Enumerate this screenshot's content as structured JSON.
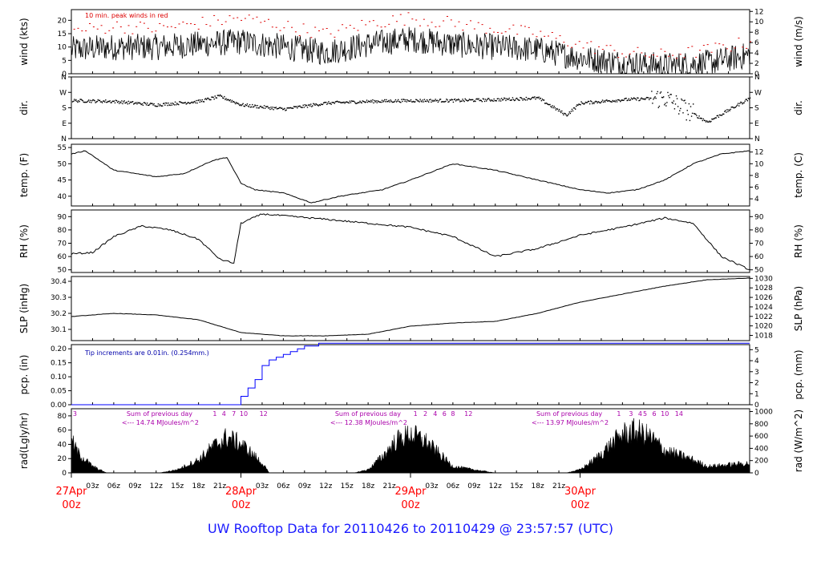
{
  "footer": {
    "title": "UW Rooftop Data for 20110426  to  20110429 @ 23:57:57  (UTC)"
  },
  "colors": {
    "axis": "#000000",
    "data": "#000000",
    "peak": "#dd0000",
    "precip": "#0000ff",
    "note": "#0000aa",
    "radnote": "#aa00aa",
    "date": "#ff0000"
  },
  "chart_data": {
    "type": "line",
    "time_axis": {
      "hour_ticks": [
        "03z",
        "06z",
        "09z",
        "12z",
        "15z",
        "18z",
        "21z"
      ],
      "day_labels": [
        {
          "date": "27Apr",
          "zulu": "00z"
        },
        {
          "date": "28Apr",
          "zulu": "00z"
        },
        {
          "date": "29Apr",
          "zulu": "00z"
        },
        {
          "date": "30Apr",
          "zulu": "00z"
        }
      ]
    },
    "panels": [
      {
        "key": "wind",
        "left_label": "wind (kts)",
        "right_label": "wind (m/s)",
        "left_ticks": [
          "0",
          "5",
          "10",
          "15",
          "20"
        ],
        "ylim": [
          0,
          24
        ],
        "right_ticks": [
          "0",
          "2",
          "4",
          "6",
          "8",
          "10",
          "12"
        ],
        "right_ylim": [
          0,
          12.35
        ],
        "annotation": "10 min. peak winds in red",
        "series": [
          {
            "name": "",
            "style": "line",
            "x_hours": [
              0,
              6,
              12,
              18,
              24,
              30,
              36,
              42,
              48,
              54,
              60,
              66,
              72,
              78,
              84,
              90,
              96
            ],
            "y": [
              9,
              10,
              10,
              11,
              12,
              10,
              8,
              11,
              13,
              11,
              10,
              9,
              6,
              4,
              3,
              4,
              7
            ]
          },
          {
            "name": "",
            "style": "dots",
            "x_hours": [
              0,
              6,
              12,
              18,
              24,
              30,
              36,
              42,
              48,
              54,
              60,
              66,
              72,
              78,
              84,
              90,
              96
            ],
            "y": [
              16,
              18,
              17,
              19,
              21,
              18,
              15,
              19,
              21,
              19,
              17,
              15,
              11,
              8,
              7,
              9,
              12
            ]
          }
        ]
      },
      {
        "key": "dir",
        "left_label": "dir.",
        "right_label": "dir.",
        "left_ticks": [
          "N",
          "E",
          "S",
          "W",
          "N"
        ],
        "ylim": [
          0,
          360
        ],
        "right_ticks": [
          "N",
          "E",
          "S",
          "W",
          "N"
        ],
        "right_ylim": [
          0,
          360
        ],
        "series": [
          {
            "name": "",
            "style": "dots",
            "x_hours": [
              0,
              6,
              12,
              18,
              21,
              24,
              30,
              36,
              42,
              48,
              54,
              60,
              66,
              70,
              72,
              78,
              84,
              90,
              96
            ],
            "y": [
              225,
              220,
              200,
              220,
              250,
              200,
              175,
              210,
              220,
              225,
              225,
              230,
              240,
              140,
              210,
              230,
              240,
              100,
              240
            ]
          }
        ]
      },
      {
        "key": "temp",
        "left_label": "temp. (F)",
        "right_label": "temp. (C)",
        "left_ticks": [
          "40",
          "45",
          "50",
          "55"
        ],
        "ylim": [
          37,
          56
        ],
        "right_ticks": [
          "4",
          "6",
          "8",
          "10",
          "12"
        ],
        "right_ylim": [
          2.78,
          13.33
        ],
        "series": [
          {
            "name": "",
            "style": "line",
            "x_hours": [
              0,
              2,
              6,
              12,
              16,
              20,
              22,
              24,
              26,
              30,
              34,
              38,
              44,
              48,
              54,
              60,
              66,
              70,
              72,
              76,
              80,
              84,
              88,
              92,
              96
            ],
            "y": [
              53,
              54,
              48,
              46,
              47,
              51,
              52,
              44,
              42,
              41,
              38,
              40,
              42,
              45,
              50,
              48,
              45,
              43,
              42,
              41,
              42,
              45,
              50,
              53,
              54
            ]
          }
        ]
      },
      {
        "key": "rh",
        "left_label": "RH (%)",
        "right_label": "RH (%)",
        "left_ticks": [
          "50",
          "60",
          "70",
          "80",
          "90"
        ],
        "ylim": [
          48,
          95
        ],
        "right_ticks": [
          "50",
          "60",
          "70",
          "80",
          "90"
        ],
        "right_ylim": [
          48,
          95
        ],
        "series": [
          {
            "name": "",
            "style": "line",
            "x_hours": [
              0,
              3,
              6,
              10,
              14,
              18,
              21,
              23,
              24,
              27,
              36,
              42,
              48,
              54,
              60,
              66,
              72,
              78,
              84,
              88,
              92,
              96
            ],
            "y": [
              62,
              63,
              75,
              83,
              80,
              73,
              58,
              55,
              85,
              92,
              88,
              85,
              82,
              75,
              60,
              66,
              76,
              82,
              89,
              85,
              60,
              50
            ]
          }
        ]
      },
      {
        "key": "slp",
        "left_label": "SLP (inHg)",
        "right_label": "SLP (hPa)",
        "left_ticks": [
          "30.1",
          "30.2",
          "30.3",
          "30.4"
        ],
        "ylim": [
          30.03,
          30.43
        ],
        "right_ticks": [
          "1018",
          "1020",
          "1022",
          "1024",
          "1026",
          "1028",
          "1030"
        ],
        "right_ylim": [
          1016.9,
          1030.4
        ],
        "series": [
          {
            "name": "",
            "style": "line",
            "x_hours": [
              0,
              6,
              12,
              18,
              24,
              30,
              36,
              42,
              48,
              54,
              60,
              66,
              72,
              78,
              84,
              90,
              96
            ],
            "y": [
              30.18,
              30.2,
              30.19,
              30.16,
              30.08,
              30.06,
              30.06,
              30.07,
              30.12,
              30.14,
              30.15,
              30.2,
              30.27,
              30.32,
              30.37,
              30.41,
              30.42
            ]
          }
        ]
      },
      {
        "key": "pcp",
        "left_label": "pcp. (in)",
        "right_label": "pcp. (mm)",
        "left_ticks": [
          "0.00",
          "0.05",
          "0.10",
          "0.15",
          "0.20"
        ],
        "ylim": [
          0,
          0.215
        ],
        "right_ticks": [
          "0",
          "1",
          "2",
          "3",
          "4",
          "5"
        ],
        "right_ylim": [
          0,
          5.46
        ],
        "annotation": "Tip increments are 0.01in. (0.254mm.)",
        "series": [
          {
            "name": "",
            "style": "step",
            "x_hours": [
              0,
              23.5,
              24,
              25,
              26,
              27,
              28,
              29,
              30,
              31,
              32,
              33,
              35,
              96
            ],
            "y": [
              0,
              0,
              0.03,
              0.06,
              0.09,
              0.14,
              0.16,
              0.17,
              0.18,
              0.19,
              0.2,
              0.21,
              0.22,
              0.22
            ]
          }
        ]
      },
      {
        "key": "rad",
        "left_label": "rad(Lgly/hr)",
        "right_label": "rad (W/m^2)",
        "left_ticks": [
          "0",
          "20",
          "40",
          "60",
          "80"
        ],
        "ylim": [
          0,
          90
        ],
        "right_ticks": [
          "0",
          "200",
          "400",
          "600",
          "800",
          "1000"
        ],
        "right_ylim": [
          0,
          1046
        ],
        "annotations": [
          {
            "hour": 3.5,
            "line1": "Sum of previous day",
            "line2": "<--- 14.74 MJoules/m^2"
          },
          {
            "hour": 33,
            "line1": "Sum of previous day",
            "line2": "<--- 12.38 MJoules/m^2"
          },
          {
            "hour": 61.5,
            "line1": "Sum of previous day",
            "line2": "<--- 13.97 MJoules/m^2"
          }
        ],
        "sun_labels": [
          {
            "hour": 0.5,
            "text": "3"
          },
          {
            "hour": 20.3,
            "text": "1"
          },
          {
            "hour": 21.6,
            "text": "4"
          },
          {
            "hour": 23,
            "text": "7"
          },
          {
            "hour": 24.4,
            "text": "10"
          },
          {
            "hour": 27.2,
            "text": "12"
          },
          {
            "hour": 48.7,
            "text": "1"
          },
          {
            "hour": 50.1,
            "text": "2"
          },
          {
            "hour": 51.5,
            "text": "4"
          },
          {
            "hour": 52.8,
            "text": "6"
          },
          {
            "hour": 54,
            "text": "8"
          },
          {
            "hour": 56.2,
            "text": "12"
          },
          {
            "hour": 77.5,
            "text": "1"
          },
          {
            "hour": 79.2,
            "text": "3"
          },
          {
            "hour": 80.5,
            "text": "4"
          },
          {
            "hour": 81.2,
            "text": "5"
          },
          {
            "hour": 82.5,
            "text": "6"
          },
          {
            "hour": 84,
            "text": "10"
          },
          {
            "hour": 86,
            "text": "14"
          }
        ],
        "series": [
          {
            "name": "",
            "style": "area",
            "x_hours": [
              0,
              1,
              3,
              5,
              12.5,
              15,
              18,
              20,
              22,
              24,
              27,
              28,
              36,
              40,
              42,
              44,
              46,
              48,
              50,
              52,
              54,
              60,
              70,
              72,
              74,
              76,
              78,
              80,
              82,
              84,
              88,
              90,
              96
            ],
            "y": [
              50,
              30,
              10,
              0,
              0,
              5,
              20,
              40,
              55,
              45,
              15,
              0,
              0,
              0,
              5,
              25,
              50,
              60,
              50,
              30,
              10,
              0,
              0,
              5,
              20,
              40,
              60,
              65,
              55,
              35,
              20,
              10,
              15
            ]
          }
        ]
      }
    ]
  }
}
